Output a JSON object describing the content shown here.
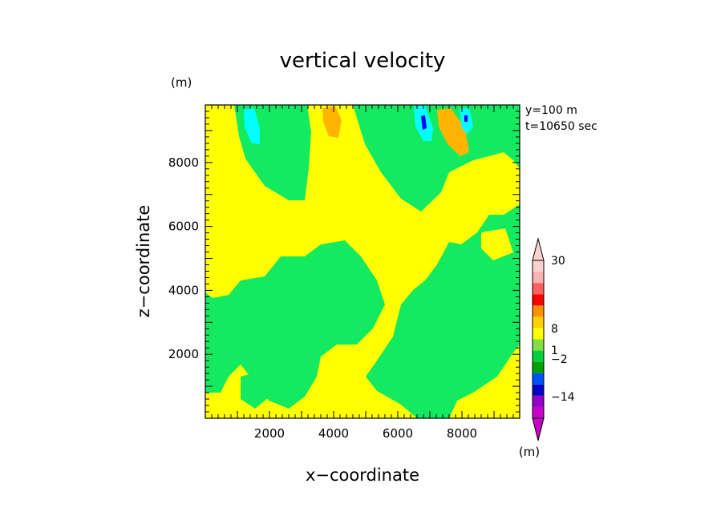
{
  "chart_data": {
    "type": "heatmap",
    "title": "vertical velocity",
    "xlabel": "x−coordinate",
    "ylabel": "z−coordinate",
    "x_unit": "(m)",
    "y_unit": "(m)",
    "annotations": [
      "y=100  m",
      "t=10650 sec"
    ],
    "xlim": [
      0,
      9800
    ],
    "ylim": [
      0,
      9800
    ],
    "x_ticks": [
      2000,
      4000,
      6000,
      8000
    ],
    "y_ticks": [
      2000,
      4000,
      6000,
      8000
    ],
    "x_tick_labels": [
      "2000",
      "4000",
      "6000",
      "8000"
    ],
    "y_tick_labels": [
      "2000",
      "4000",
      "6000",
      "8000"
    ],
    "grid": false,
    "colorbar": {
      "unit": "(m)",
      "labels": [
        {
          "value": 30,
          "text": "30"
        },
        {
          "value": 8,
          "text": "8"
        },
        {
          "value": 1,
          "text": "1"
        },
        {
          "value": -2,
          "text": "−2"
        },
        {
          "value": -14,
          "text": "−14"
        }
      ],
      "colors": [
        "#c800c8",
        "#9400c8",
        "#0000c8",
        "#0050ff",
        "#00a000",
        "#00d040",
        "#80e040",
        "#ffff00",
        "#ffd000",
        "#ff9000",
        "#ff0000",
        "#ff6060",
        "#ffb0b0",
        "#ffd0d0"
      ]
    },
    "field_colors": {
      "green": "#14ea60",
      "yellow": "#ffff00",
      "orange": "#ffb400",
      "cyan": "#00ffff",
      "blue": "#0000ff"
    }
  }
}
